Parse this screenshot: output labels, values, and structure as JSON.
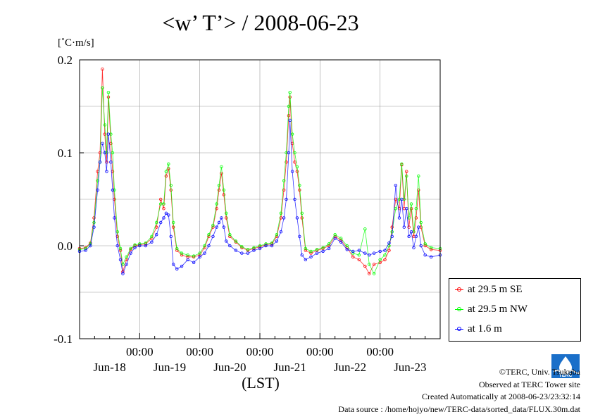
{
  "header": {
    "title": "<w’ T’> / 2008-06-23"
  },
  "chart_data": {
    "type": "line",
    "title": "<w’ T’> / 2008-06-23",
    "ylabel": "[˚C·m/s]",
    "xlabel": "(LST)",
    "ylim": [
      -0.1,
      0.2
    ],
    "yticks": [
      -0.1,
      0.0,
      0.1,
      0.2
    ],
    "ytick_labels": [
      "-0.1",
      "0.0",
      "0.1",
      "0.2"
    ],
    "xlim": [
      0,
      6
    ],
    "xticks": [
      1,
      2,
      3,
      4,
      5,
      6
    ],
    "xtick_time_labels": [
      "00:00",
      "00:00",
      "00:00",
      "00:00",
      "00:00",
      ""
    ],
    "xtick_date_labels": [
      "Jun-18",
      "Jun-19",
      "Jun-20",
      "Jun-21",
      "Jun-22",
      "Jun-23"
    ],
    "grid": true,
    "legend_position": "right",
    "series": [
      {
        "name": "at 29.5 m SE",
        "color": "#ff0000",
        "points": [
          [
            0.0,
            -0.003
          ],
          [
            0.1,
            -0.002
          ],
          [
            0.18,
            0.003
          ],
          [
            0.24,
            0.03
          ],
          [
            0.3,
            0.08
          ],
          [
            0.34,
            0.1
          ],
          [
            0.38,
            0.19
          ],
          [
            0.42,
            0.12
          ],
          [
            0.45,
            0.09
          ],
          [
            0.48,
            0.16
          ],
          [
            0.52,
            0.11
          ],
          [
            0.55,
            0.08
          ],
          [
            0.58,
            0.05
          ],
          [
            0.63,
            0.01
          ],
          [
            0.68,
            -0.005
          ],
          [
            0.72,
            -0.028
          ],
          [
            0.78,
            -0.015
          ],
          [
            0.85,
            -0.004
          ],
          [
            0.92,
            0.0
          ],
          [
            1.0,
            0.001
          ],
          [
            1.1,
            0.002
          ],
          [
            1.2,
            0.008
          ],
          [
            1.28,
            0.02
          ],
          [
            1.35,
            0.05
          ],
          [
            1.4,
            0.04
          ],
          [
            1.44,
            0.075
          ],
          [
            1.48,
            0.083
          ],
          [
            1.52,
            0.06
          ],
          [
            1.56,
            0.02
          ],
          [
            1.62,
            -0.005
          ],
          [
            1.7,
            -0.01
          ],
          [
            1.8,
            -0.012
          ],
          [
            1.9,
            -0.012
          ],
          [
            2.0,
            -0.01
          ],
          [
            2.08,
            -0.002
          ],
          [
            2.15,
            0.01
          ],
          [
            2.22,
            0.02
          ],
          [
            2.28,
            0.04
          ],
          [
            2.32,
            0.06
          ],
          [
            2.36,
            0.078
          ],
          [
            2.4,
            0.055
          ],
          [
            2.44,
            0.03
          ],
          [
            2.5,
            0.01
          ],
          [
            2.6,
            0.004
          ],
          [
            2.7,
            -0.002
          ],
          [
            2.8,
            -0.005
          ],
          [
            2.9,
            -0.003
          ],
          [
            3.0,
            -0.001
          ],
          [
            3.1,
            0.001
          ],
          [
            3.2,
            0.002
          ],
          [
            3.28,
            0.01
          ],
          [
            3.35,
            0.03
          ],
          [
            3.4,
            0.06
          ],
          [
            3.44,
            0.09
          ],
          [
            3.48,
            0.14
          ],
          [
            3.5,
            0.16
          ],
          [
            3.54,
            0.11
          ],
          [
            3.58,
            0.09
          ],
          [
            3.62,
            0.08
          ],
          [
            3.66,
            0.06
          ],
          [
            3.7,
            0.03
          ],
          [
            3.76,
            -0.005
          ],
          [
            3.85,
            -0.008
          ],
          [
            3.95,
            -0.005
          ],
          [
            4.05,
            -0.003
          ],
          [
            4.15,
            0.0
          ],
          [
            4.25,
            0.01
          ],
          [
            4.35,
            0.006
          ],
          [
            4.45,
            -0.002
          ],
          [
            4.55,
            -0.012
          ],
          [
            4.65,
            -0.015
          ],
          [
            4.75,
            -0.022
          ],
          [
            4.82,
            -0.03
          ],
          [
            4.9,
            -0.02
          ],
          [
            5.0,
            -0.018
          ],
          [
            5.08,
            -0.015
          ],
          [
            5.15,
            -0.005
          ],
          [
            5.2,
            0.02
          ],
          [
            5.26,
            0.05
          ],
          [
            5.32,
            0.04
          ],
          [
            5.36,
            0.087
          ],
          [
            5.4,
            0.04
          ],
          [
            5.44,
            0.08
          ],
          [
            5.48,
            0.02
          ],
          [
            5.52,
            0.04
          ],
          [
            5.56,
            0.01
          ],
          [
            5.6,
            0.03
          ],
          [
            5.64,
            0.06
          ],
          [
            5.68,
            0.02
          ],
          [
            5.75,
            0.0
          ],
          [
            5.85,
            -0.004
          ],
          [
            6.0,
            -0.005
          ]
        ]
      },
      {
        "name": "at 29.5 m NW",
        "color": "#00ff00",
        "points": [
          [
            0.0,
            -0.004
          ],
          [
            0.1,
            -0.003
          ],
          [
            0.18,
            0.002
          ],
          [
            0.24,
            0.025
          ],
          [
            0.3,
            0.07
          ],
          [
            0.34,
            0.09
          ],
          [
            0.38,
            0.17
          ],
          [
            0.42,
            0.13
          ],
          [
            0.45,
            0.1
          ],
          [
            0.48,
            0.165
          ],
          [
            0.52,
            0.12
          ],
          [
            0.55,
            0.1
          ],
          [
            0.58,
            0.06
          ],
          [
            0.63,
            0.015
          ],
          [
            0.68,
            -0.003
          ],
          [
            0.72,
            -0.02
          ],
          [
            0.78,
            -0.012
          ],
          [
            0.85,
            -0.003
          ],
          [
            0.92,
            0.001
          ],
          [
            1.0,
            0.002
          ],
          [
            1.1,
            0.003
          ],
          [
            1.2,
            0.01
          ],
          [
            1.28,
            0.025
          ],
          [
            1.35,
            0.045
          ],
          [
            1.4,
            0.045
          ],
          [
            1.44,
            0.08
          ],
          [
            1.48,
            0.088
          ],
          [
            1.52,
            0.065
          ],
          [
            1.56,
            0.025
          ],
          [
            1.62,
            -0.003
          ],
          [
            1.7,
            -0.008
          ],
          [
            1.8,
            -0.01
          ],
          [
            1.9,
            -0.011
          ],
          [
            2.0,
            -0.008
          ],
          [
            2.08,
            0.0
          ],
          [
            2.15,
            0.012
          ],
          [
            2.22,
            0.022
          ],
          [
            2.28,
            0.045
          ],
          [
            2.32,
            0.065
          ],
          [
            2.36,
            0.085
          ],
          [
            2.4,
            0.06
          ],
          [
            2.44,
            0.035
          ],
          [
            2.5,
            0.012
          ],
          [
            2.6,
            0.005
          ],
          [
            2.7,
            -0.001
          ],
          [
            2.8,
            -0.004
          ],
          [
            2.9,
            -0.002
          ],
          [
            3.0,
            0.0
          ],
          [
            3.1,
            0.002
          ],
          [
            3.2,
            0.003
          ],
          [
            3.28,
            0.012
          ],
          [
            3.35,
            0.035
          ],
          [
            3.4,
            0.07
          ],
          [
            3.44,
            0.1
          ],
          [
            3.48,
            0.15
          ],
          [
            3.5,
            0.165
          ],
          [
            3.54,
            0.12
          ],
          [
            3.58,
            0.1
          ],
          [
            3.62,
            0.085
          ],
          [
            3.66,
            0.065
          ],
          [
            3.7,
            0.035
          ],
          [
            3.76,
            -0.003
          ],
          [
            3.85,
            -0.006
          ],
          [
            3.95,
            -0.004
          ],
          [
            4.05,
            -0.002
          ],
          [
            4.15,
            0.002
          ],
          [
            4.25,
            0.012
          ],
          [
            4.35,
            0.008
          ],
          [
            4.45,
            0.0
          ],
          [
            4.55,
            -0.008
          ],
          [
            4.65,
            -0.01
          ],
          [
            4.75,
            0.018
          ],
          [
            4.82,
            -0.02
          ],
          [
            4.9,
            -0.03
          ],
          [
            5.0,
            -0.015
          ],
          [
            5.08,
            -0.01
          ],
          [
            5.15,
            0.0
          ],
          [
            5.2,
            0.015
          ],
          [
            5.26,
            0.04
          ],
          [
            5.32,
            0.05
          ],
          [
            5.36,
            0.088
          ],
          [
            5.4,
            0.05
          ],
          [
            5.44,
            0.075
          ],
          [
            5.48,
            0.03
          ],
          [
            5.52,
            0.045
          ],
          [
            5.56,
            0.015
          ],
          [
            5.6,
            0.04
          ],
          [
            5.64,
            0.075
          ],
          [
            5.68,
            0.025
          ],
          [
            5.75,
            0.002
          ],
          [
            5.85,
            -0.002
          ],
          [
            6.0,
            -0.003
          ]
        ]
      },
      {
        "name": "at 1.6 m",
        "color": "#0000ff",
        "points": [
          [
            0.0,
            -0.006
          ],
          [
            0.1,
            -0.005
          ],
          [
            0.18,
            0.0
          ],
          [
            0.24,
            0.02
          ],
          [
            0.3,
            0.06
          ],
          [
            0.34,
            0.09
          ],
          [
            0.38,
            0.11
          ],
          [
            0.42,
            0.1
          ],
          [
            0.45,
            0.08
          ],
          [
            0.48,
            0.12
          ],
          [
            0.52,
            0.09
          ],
          [
            0.55,
            0.06
          ],
          [
            0.58,
            0.03
          ],
          [
            0.63,
            0.0
          ],
          [
            0.68,
            -0.015
          ],
          [
            0.72,
            -0.03
          ],
          [
            0.78,
            -0.02
          ],
          [
            0.85,
            -0.008
          ],
          [
            0.92,
            -0.002
          ],
          [
            1.0,
            0.0
          ],
          [
            1.1,
            0.0
          ],
          [
            1.2,
            0.004
          ],
          [
            1.28,
            0.012
          ],
          [
            1.35,
            0.025
          ],
          [
            1.4,
            0.03
          ],
          [
            1.44,
            0.035
          ],
          [
            1.48,
            0.033
          ],
          [
            1.52,
            0.01
          ],
          [
            1.56,
            -0.02
          ],
          [
            1.62,
            -0.025
          ],
          [
            1.7,
            -0.022
          ],
          [
            1.8,
            -0.015
          ],
          [
            1.9,
            -0.018
          ],
          [
            2.0,
            -0.012
          ],
          [
            2.08,
            -0.008
          ],
          [
            2.15,
            0.0
          ],
          [
            2.22,
            0.01
          ],
          [
            2.28,
            0.02
          ],
          [
            2.32,
            0.025
          ],
          [
            2.36,
            0.03
          ],
          [
            2.4,
            0.02
          ],
          [
            2.44,
            0.005
          ],
          [
            2.5,
            0.0
          ],
          [
            2.6,
            -0.005
          ],
          [
            2.7,
            -0.008
          ],
          [
            2.8,
            -0.008
          ],
          [
            2.9,
            -0.005
          ],
          [
            3.0,
            -0.003
          ],
          [
            3.1,
            0.0
          ],
          [
            3.2,
            0.0
          ],
          [
            3.28,
            0.005
          ],
          [
            3.35,
            0.015
          ],
          [
            3.4,
            0.03
          ],
          [
            3.44,
            0.05
          ],
          [
            3.48,
            0.1
          ],
          [
            3.5,
            0.135
          ],
          [
            3.54,
            0.08
          ],
          [
            3.58,
            0.05
          ],
          [
            3.62,
            0.03
          ],
          [
            3.66,
            0.01
          ],
          [
            3.7,
            -0.01
          ],
          [
            3.76,
            -0.015
          ],
          [
            3.85,
            -0.012
          ],
          [
            3.95,
            -0.008
          ],
          [
            4.05,
            -0.006
          ],
          [
            4.15,
            -0.003
          ],
          [
            4.25,
            0.008
          ],
          [
            4.35,
            0.004
          ],
          [
            4.45,
            -0.004
          ],
          [
            4.55,
            -0.006
          ],
          [
            4.65,
            -0.005
          ],
          [
            4.75,
            -0.008
          ],
          [
            4.82,
            -0.01
          ],
          [
            4.9,
            -0.008
          ],
          [
            5.0,
            -0.006
          ],
          [
            5.08,
            -0.005
          ],
          [
            5.15,
            0.003
          ],
          [
            5.2,
            0.01
          ],
          [
            5.26,
            0.065
          ],
          [
            5.32,
            0.03
          ],
          [
            5.36,
            0.05
          ],
          [
            5.4,
            0.02
          ],
          [
            5.44,
            0.04
          ],
          [
            5.48,
            0.01
          ],
          [
            5.52,
            0.015
          ],
          [
            5.56,
            -0.002
          ],
          [
            5.6,
            0.01
          ],
          [
            5.64,
            0.02
          ],
          [
            5.68,
            0.0
          ],
          [
            5.75,
            -0.01
          ],
          [
            5.85,
            -0.012
          ],
          [
            6.0,
            -0.01
          ]
        ]
      }
    ]
  },
  "credits": {
    "copyright": "©TERC, Univ. Tsukuba",
    "observed": "Observed at TERC Tower site",
    "created": "Created Automatically at 2008-06-23/23:32:14",
    "source": "Data source : /home/hojyo/new/TERC-data/sorted_data/FLUX.30m.dat"
  },
  "logo": {
    "text": "TERC",
    "color": "#1a6fc9"
  }
}
